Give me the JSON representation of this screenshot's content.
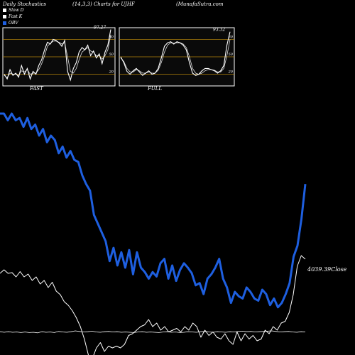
{
  "header": {
    "left": "Daily Stochastics",
    "middle": "(14,3,3) Charts for UJHF",
    "right": "(MunafaSutra.com"
  },
  "legend": [
    {
      "label": "Slow D",
      "color": "#ffffff"
    },
    {
      "label": "Fast K",
      "color": "#ffffff"
    },
    {
      "label": "OBV",
      "color": "#1e5fe0"
    }
  ],
  "panels": [
    {
      "label": "FAST",
      "last_value": "97.27"
    },
    {
      "label": "FULL",
      "last_value": "93.32"
    }
  ],
  "right_label": "4039.39Close",
  "chart_data": [
    {
      "type": "line",
      "title": "FAST",
      "ylim": [
        0,
        100
      ],
      "reference_lines": [
        20,
        50,
        80
      ],
      "tick_labels": [
        "80",
        "50",
        "20"
      ],
      "series": [
        {
          "name": "Fast K",
          "values": [
            20,
            12,
            28,
            18,
            22,
            15,
            35,
            20,
            30,
            12,
            25,
            20,
            35,
            45,
            62,
            75,
            72,
            80,
            78,
            74,
            68,
            78,
            25,
            10,
            30,
            40,
            58,
            66,
            62,
            70,
            52,
            60,
            48,
            55,
            38,
            58,
            70,
            97
          ]
        },
        {
          "name": "Slow D",
          "values": [
            18,
            14,
            22,
            20,
            20,
            18,
            26,
            24,
            28,
            20,
            22,
            22,
            28,
            38,
            52,
            68,
            73,
            77,
            77,
            75,
            72,
            74,
            50,
            25,
            22,
            30,
            45,
            58,
            62,
            66,
            60,
            58,
            52,
            52,
            46,
            52,
            62,
            88
          ]
        }
      ]
    },
    {
      "type": "line",
      "title": "FULL",
      "ylim": [
        0,
        100
      ],
      "reference_lines": [
        20,
        50,
        80
      ],
      "tick_labels": [
        "80",
        "50",
        "20"
      ],
      "series": [
        {
          "name": "Fast K",
          "values": [
            50,
            40,
            25,
            20,
            26,
            30,
            24,
            18,
            22,
            26,
            20,
            22,
            30,
            48,
            68,
            74,
            76,
            72,
            76,
            74,
            70,
            62,
            40,
            22,
            18,
            20,
            26,
            30,
            30,
            28,
            26,
            22,
            26,
            35,
            70,
            93
          ]
        },
        {
          "name": "Slow D",
          "values": [
            48,
            42,
            30,
            24,
            24,
            28,
            26,
            22,
            22,
            24,
            22,
            22,
            27,
            40,
            58,
            70,
            74,
            73,
            74,
            74,
            72,
            66,
            50,
            30,
            22,
            20,
            22,
            26,
            28,
            28,
            27,
            24,
            24,
            30,
            52,
            80
          ]
        }
      ]
    },
    {
      "type": "line",
      "title": "OBV / Price",
      "series": [
        {
          "name": "OBV",
          "color": "#1e5fe0",
          "values": [
            1000,
            1000,
            970,
            1000,
            970,
            980,
            940,
            980,
            930,
            950,
            900,
            930,
            870,
            900,
            880,
            820,
            850,
            800,
            830,
            790,
            780,
            720,
            680,
            650,
            540,
            500,
            460,
            420,
            330,
            390,
            310,
            370,
            300,
            380,
            270,
            370,
            300,
            280,
            250,
            280,
            260,
            320,
            340,
            250,
            310,
            240,
            290,
            320,
            300,
            275,
            220,
            230,
            180,
            250,
            270,
            300,
            340,
            250,
            210,
            140,
            190,
            170,
            160,
            210,
            190,
            160,
            150,
            200,
            180,
            130,
            160,
            120,
            140,
            180,
            230,
            350,
            400,
            520,
            680
          ]
        },
        {
          "name": "Price",
          "color": "#ffffff",
          "values": [
            170,
            180,
            170,
            172,
            160,
            175,
            160,
            168,
            150,
            160,
            140,
            150,
            130,
            145,
            120,
            110,
            90,
            80,
            65,
            45,
            20,
            -15,
            -60,
            -70,
            -40,
            -25,
            -50,
            -35,
            -40,
            -35,
            -40,
            -30,
            -5,
            0,
            10,
            20,
            25,
            40,
            20,
            30,
            10,
            20,
            5,
            10,
            15,
            5,
            20,
            10,
            30,
            20,
            -10,
            10,
            -5,
            5,
            -10,
            -15,
            0,
            -20,
            -30,
            5,
            -20,
            0,
            -15,
            -5,
            -20,
            -15,
            10,
            0,
            20,
            10,
            30,
            35,
            60,
            110,
            190,
            220,
            210
          ]
        },
        {
          "name": "Lower",
          "color": "#ffffff",
          "values": [
            14,
            10,
            14,
            10,
            12,
            8,
            12,
            8,
            10,
            6,
            14,
            10,
            12,
            8,
            16,
            12,
            10,
            14,
            20,
            16,
            12,
            14,
            18,
            12,
            10,
            14,
            16,
            12,
            14,
            10,
            12,
            10,
            8,
            12,
            14,
            10,
            12,
            10,
            8,
            12,
            14,
            10,
            12,
            8,
            10,
            14,
            12,
            10,
            14,
            16,
            12,
            10,
            14,
            12,
            10,
            14,
            12,
            16,
            18,
            14,
            16,
            12,
            14,
            16,
            18,
            20,
            16,
            12,
            14,
            16,
            12,
            10,
            14,
            12
          ]
        }
      ]
    }
  ]
}
